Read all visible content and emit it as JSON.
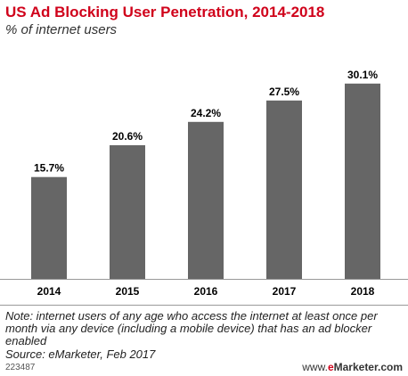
{
  "header": {
    "title": "US Ad Blocking User Penetration, 2014-2018",
    "subtitle": "% of internet users"
  },
  "chart_data": {
    "type": "bar",
    "title": "US Ad Blocking User Penetration, 2014-2018",
    "subtitle": "% of internet users",
    "categories": [
      "2014",
      "2015",
      "2016",
      "2017",
      "2018"
    ],
    "values": [
      15.7,
      20.6,
      24.2,
      27.5,
      30.1
    ],
    "value_labels": [
      "15.7%",
      "20.6%",
      "24.2%",
      "27.5%",
      "30.1%"
    ],
    "ylim": [
      0,
      32
    ],
    "grid": false,
    "legend": "none",
    "colors": {
      "bar": "#666666",
      "title": "#d0021b"
    }
  },
  "footer": {
    "note": "Note: internet users of any age who access the internet at least once per month via any device (including a mobile device) that has an ad blocker enabled",
    "source": "Source: eMarketer, Feb 2017",
    "chart_id": "223487",
    "brand_prefix": "www.",
    "brand_em": "e",
    "brand_rest": "Marketer.com"
  }
}
